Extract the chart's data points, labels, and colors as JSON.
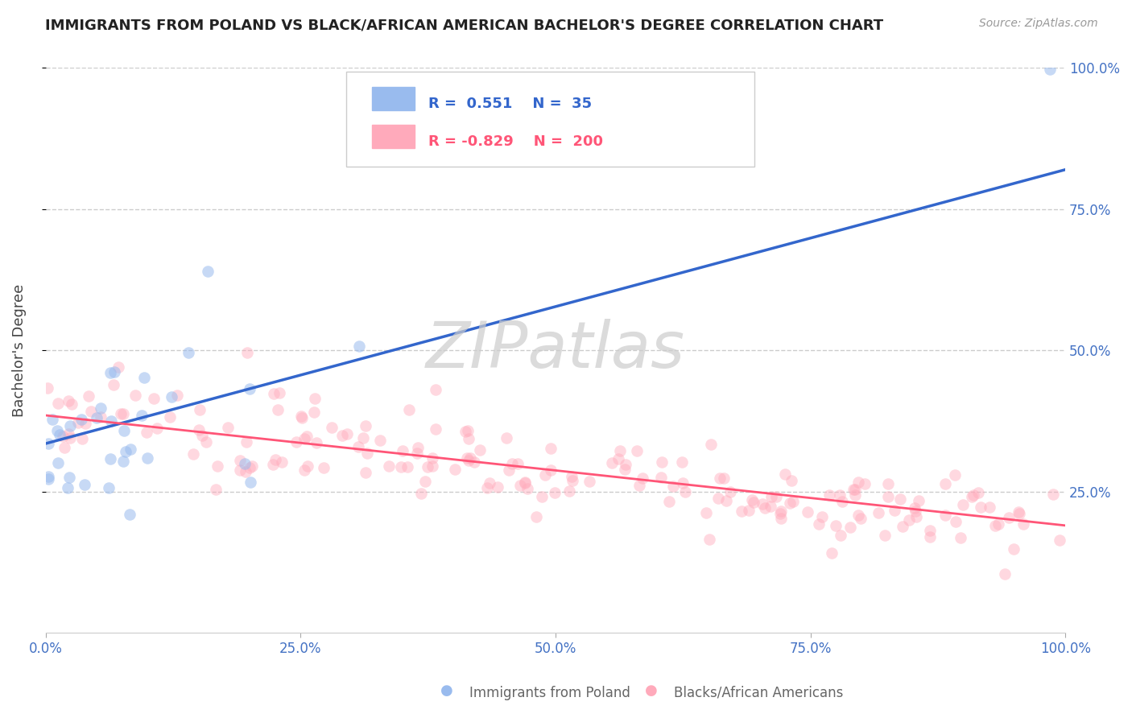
{
  "title": "IMMIGRANTS FROM POLAND VS BLACK/AFRICAN AMERICAN BACHELOR'S DEGREE CORRELATION CHART",
  "source_text": "Source: ZipAtlas.com",
  "ylabel": "Bachelor's Degree",
  "blue_r": 0.551,
  "blue_n": 35,
  "pink_r": -0.829,
  "pink_n": 200,
  "blue_scatter_color": "#99BBEE",
  "pink_scatter_color": "#FFAABB",
  "blue_line_color": "#3366CC",
  "pink_line_color": "#FF5577",
  "scatter_alpha_blue": 0.55,
  "scatter_alpha_pink": 0.45,
  "scatter_size": 110,
  "blue_trend_start_y": 0.335,
  "blue_trend_end_y": 0.82,
  "pink_trend_start_y": 0.385,
  "pink_trend_end_y": 0.19,
  "yticks": [
    0.25,
    0.5,
    0.75,
    1.0
  ],
  "ytick_labels": [
    "25.0%",
    "50.0%",
    "75.0%",
    "100.0%"
  ],
  "xticks": [
    0.0,
    0.25,
    0.5,
    0.75,
    1.0
  ],
  "xtick_labels": [
    "0.0%",
    "25.0%",
    "50.0%",
    "75.0%",
    "100.0%"
  ],
  "axis_label_color": "#4472C4",
  "watermark": "ZIPatlas",
  "legend_blue_label": "Immigrants from Poland",
  "legend_pink_label": "Blacks/African Americans",
  "title_fontsize": 13,
  "tick_fontsize": 12,
  "legend_fontsize": 13
}
